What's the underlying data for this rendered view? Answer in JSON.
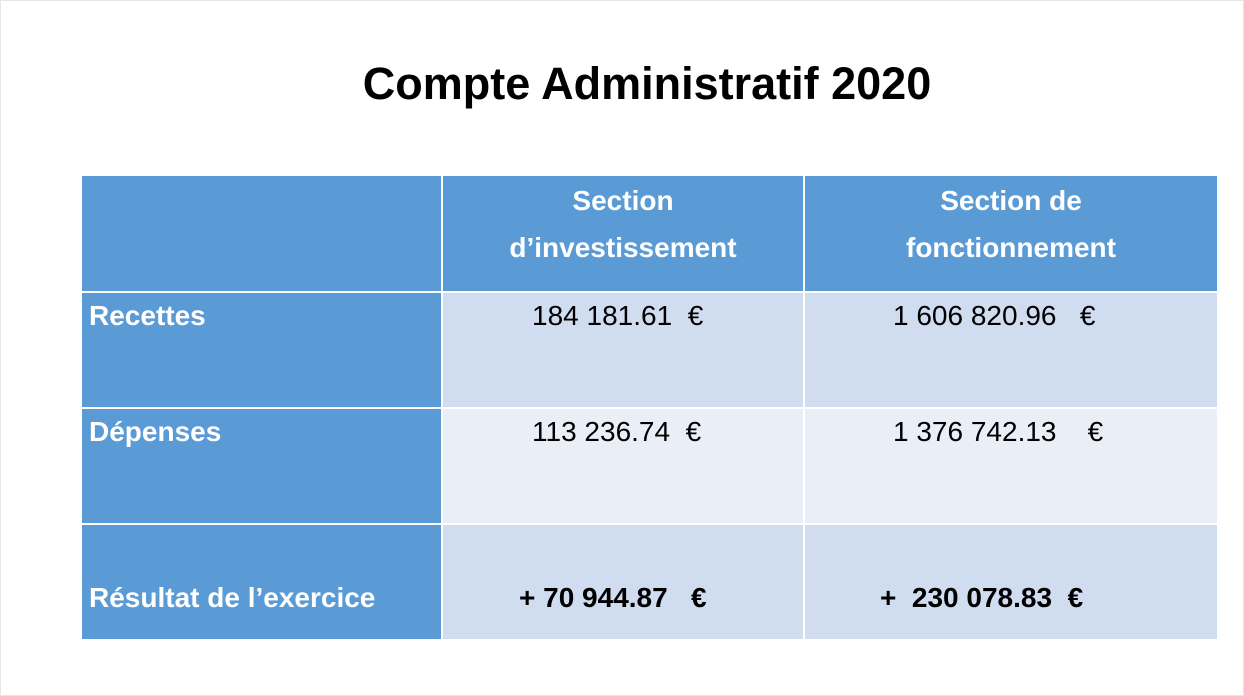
{
  "title": "Compte Administratif 2020",
  "table": {
    "headers": {
      "col1_line1": "Section",
      "col1_line2": "d’investissement",
      "col2_line1": "Section de",
      "col2_line2": "fonctionnement"
    },
    "rows": [
      {
        "label": "Recettes",
        "investissement": "184 181.61  €",
        "fonctionnement": "1 606 820.96   €"
      },
      {
        "label": "Dépenses",
        "investissement": "113 236.74  €",
        "fonctionnement": "1 376 742.13    €"
      },
      {
        "label": "Résultat de  l’exercice",
        "investissement": "+ 70 944.87   €",
        "fonctionnement": "+  230 078.83  €"
      }
    ]
  },
  "colors": {
    "header_blue": "#5b9bd5",
    "row_dark": "#d0dcef",
    "row_light": "#e9eef7"
  }
}
